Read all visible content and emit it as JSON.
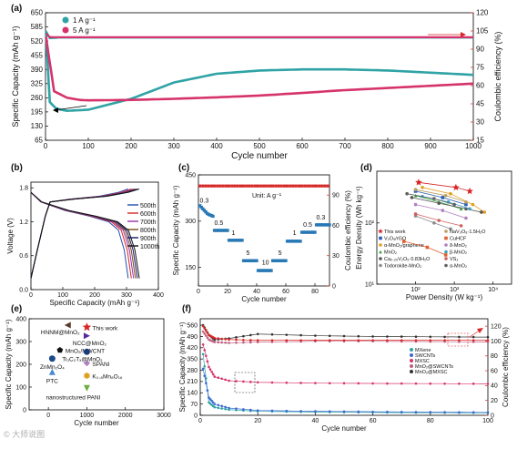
{
  "chart_data": [
    {
      "panel": "a",
      "type": "line",
      "xlabel": "Cycle number",
      "ylabel": "Specific Capacity (mAh g⁻¹)",
      "y2label": "Coulombic efficiency (%)",
      "xlim": [
        0,
        1000
      ],
      "ylim": [
        65,
        650
      ],
      "y2lim": [
        15,
        120
      ],
      "xticks": [
        0,
        100,
        200,
        300,
        400,
        500,
        600,
        700,
        800,
        900,
        1000
      ],
      "yticks": [
        65,
        130,
        195,
        260,
        325,
        390,
        455,
        520,
        585,
        650
      ],
      "y2ticks": [
        15,
        30,
        45,
        60,
        75,
        90,
        105,
        120
      ],
      "legend_position": "top-left",
      "series": [
        {
          "name": "1 A g⁻¹",
          "axis": "left",
          "color": "#2fa3a6",
          "x": [
            1,
            10,
            25,
            50,
            100,
            200,
            300,
            400,
            500,
            600,
            700,
            800,
            900,
            1000
          ],
          "y": [
            560,
            240,
            210,
            200,
            205,
            255,
            330,
            370,
            385,
            390,
            390,
            385,
            375,
            365
          ]
        },
        {
          "name": "5 A g⁻¹",
          "axis": "left",
          "color": "#d6336c",
          "x": [
            1,
            20,
            50,
            80,
            100,
            200,
            300,
            400,
            500,
            600,
            700,
            800,
            900,
            1000
          ],
          "y": [
            540,
            290,
            260,
            250,
            248,
            250,
            255,
            262,
            270,
            282,
            295,
            305,
            315,
            325
          ]
        },
        {
          "name": "CE 1 A g⁻¹",
          "axis": "right",
          "color": "#2fa3a6",
          "x": [
            1,
            10,
            30,
            1000
          ],
          "y": [
            105,
            99,
            99.5,
            99.5
          ]
        },
        {
          "name": "CE 5 A g⁻¹",
          "axis": "right",
          "color": "#d6336c",
          "x": [
            1,
            10,
            30,
            1000
          ],
          "y": [
            103,
            100,
            99.8,
            99.8
          ]
        }
      ]
    },
    {
      "panel": "b",
      "type": "line",
      "xlabel": "Specific Capacity (mAh g⁻¹)",
      "ylabel": "Voltage (V)",
      "xlim": [
        0,
        400
      ],
      "ylim": [
        0,
        1.9
      ],
      "xticks": [
        0,
        100,
        200,
        300,
        400
      ],
      "yticks": [
        0.0,
        0.6,
        1.2,
        1.8
      ],
      "legend_position": "right",
      "series": [
        {
          "name": "500th",
          "color": "#1f4fb4",
          "end_capacity": 305
        },
        {
          "name": "600th",
          "color": "#d62728",
          "end_capacity": 315
        },
        {
          "name": "700th",
          "color": "#9b2fae",
          "end_capacity": 322
        },
        {
          "name": "800th",
          "color": "#7a4a1a",
          "end_capacity": 328
        },
        {
          "name": "900th",
          "color": "#1a1a6a",
          "end_capacity": 334
        },
        {
          "name": "1000th",
          "color": "#111111",
          "end_capacity": 340
        }
      ]
    },
    {
      "panel": "c",
      "type": "scatter",
      "xlabel": "Cycle number",
      "ylabel": "Specific Capacity (mAh g⁻¹)",
      "y2label": "Coulombic efficiency (%)",
      "xlim": [
        0,
        90
      ],
      "ylim": [
        90,
        450
      ],
      "y2lim": [
        0,
        110
      ],
      "xticks": [
        0,
        20,
        40,
        60,
        80
      ],
      "yticks": [
        150,
        300,
        450
      ],
      "y2ticks": [
        0,
        30,
        60,
        90
      ],
      "unit_note": "Unit: A g⁻¹",
      "rate_labels": [
        {
          "text": "0.3",
          "x": 4,
          "y": 360
        },
        {
          "text": "0.5",
          "x": 14,
          "y": 288
        },
        {
          "text": "1",
          "x": 24,
          "y": 255
        },
        {
          "text": "5",
          "x": 34,
          "y": 190
        },
        {
          "text": "10",
          "x": 46,
          "y": 160
        },
        {
          "text": "5",
          "x": 56,
          "y": 190
        },
        {
          "text": "1",
          "x": 66,
          "y": 255
        },
        {
          "text": "0.5",
          "x": 75,
          "y": 282
        },
        {
          "text": "0.3",
          "x": 84,
          "y": 306
        }
      ],
      "steps": [
        {
          "from": 1,
          "to": 10,
          "y": [
            350,
            345,
            340,
            335,
            330,
            325,
            322,
            320,
            318,
            316
          ]
        },
        {
          "from": 11,
          "to": 20,
          "y": 270
        },
        {
          "from": 21,
          "to": 30,
          "y": 238
        },
        {
          "from": 31,
          "to": 40,
          "y": 172
        },
        {
          "from": 41,
          "to": 50,
          "y": 140
        },
        {
          "from": 51,
          "to": 60,
          "y": 172
        },
        {
          "from": 61,
          "to": 70,
          "y": 235
        },
        {
          "from": 71,
          "to": 80,
          "y": 264
        },
        {
          "from": 81,
          "to": 90,
          "y": 288
        }
      ],
      "ce": 99,
      "capacity_color": "#2878b5",
      "ce_color": "#d62728"
    },
    {
      "panel": "d",
      "type": "scatter",
      "scale": "log",
      "xlabel": "Power Density (W kg⁻¹)",
      "ylabel": "Energy Density (Wh kg⁻¹)",
      "xlim": [
        10,
        30000
      ],
      "ylim": [
        10,
        700
      ],
      "xticks": [
        100,
        1000,
        10000
      ],
      "xtick_labels": [
        "10²",
        "10³",
        "10⁴"
      ],
      "yticks": [
        10,
        100
      ],
      "ytick_labels": [
        "10¹",
        "10²"
      ],
      "legend": [
        {
          "name": "This work",
          "color": "#d62728",
          "marker": "star",
          "pts": [
            [
              120,
              460
            ],
            [
              1100,
              380
            ],
            [
              2500,
              330
            ]
          ]
        },
        {
          "name": "V₂O₅/rGO",
          "color": "#2a5db0",
          "marker": "square",
          "pts": [
            [
              100,
              330
            ],
            [
              500,
              260
            ],
            [
              2000,
              200
            ]
          ]
        },
        {
          "name": "α-MnO₂/graphene",
          "color": "#e0a020",
          "marker": "circle",
          "pts": [
            [
              150,
              380
            ],
            [
              800,
              300
            ],
            [
              3000,
              200
            ],
            [
              6000,
              150
            ]
          ]
        },
        {
          "name": "MnO₂",
          "color": "#2ca02c",
          "marker": "triangle",
          "pts": [
            [
              100,
              280
            ],
            [
              400,
              220
            ],
            [
              1500,
              170
            ]
          ]
        },
        {
          "name": "Ca₀.₂₅V₂O₅·0.83H₂O",
          "color": "#555555",
          "marker": "circle",
          "pts": [
            [
              80,
              260
            ],
            [
              400,
              210
            ],
            [
              2000,
              170
            ],
            [
              5000,
              150
            ]
          ]
        },
        {
          "name": "Todorokite-MnO₂",
          "color": "#8c8c8c",
          "marker": "circle",
          "pts": [
            [
              100,
              130
            ],
            [
              300,
              100
            ],
            [
              800,
              80
            ]
          ]
        },
        {
          "name": "NaV₃O₈·1.5H₂O",
          "color": "#bba060",
          "marker": "circle",
          "pts": [
            [
              100,
              350
            ],
            [
              600,
              280
            ],
            [
              2000,
              220
            ]
          ]
        },
        {
          "name": "CuHCF",
          "color": "#e06030",
          "marker": "square",
          "pts": [
            [
              50,
              50
            ],
            [
              200,
              40
            ],
            [
              600,
              30
            ]
          ]
        },
        {
          "name": "δ-MnO₂",
          "color": "#b080c0",
          "marker": "circle",
          "pts": [
            [
              100,
              200
            ],
            [
              500,
              160
            ],
            [
              2000,
              120
            ]
          ]
        },
        {
          "name": "β-MnO₂",
          "color": "#40a0c0",
          "marker": "circle",
          "pts": [
            [
              150,
              270
            ],
            [
              700,
              220
            ],
            [
              2500,
              170
            ]
          ]
        },
        {
          "name": "VS₂",
          "color": "#d06060",
          "marker": "circle",
          "pts": [
            [
              100,
              140
            ],
            [
              400,
              110
            ],
            [
              1500,
              90
            ]
          ]
        },
        {
          "name": "α-MnO₂",
          "color": "#606060",
          "marker": "circle",
          "pts": [
            [
              60,
              300
            ],
            [
              300,
              250
            ],
            [
              1000,
              200
            ]
          ]
        }
      ]
    },
    {
      "panel": "e",
      "type": "scatter",
      "xlabel": "Cycle number",
      "ylabel": "Specific Capacity (mAh g⁻¹)",
      "xlim": [
        -500,
        3000
      ],
      "ylim": [
        0,
        400
      ],
      "xticks": [
        0,
        1000,
        2000,
        3000
      ],
      "yticks": [
        0,
        100,
        200,
        300,
        400
      ],
      "points": [
        {
          "label": "This work",
          "x": 1000,
          "y": 363,
          "color": "#d62728",
          "marker": "star"
        },
        {
          "label": "HNNM@MnO₂",
          "x": 500,
          "y": 372,
          "color": "#5a3a2a",
          "marker": "triangle-left"
        },
        {
          "label": "NCC@MnO₂",
          "x": 1000,
          "y": 325,
          "color": "#5a2a9a",
          "marker": "triangle-right"
        },
        {
          "label": "MnO₂/MWCNT",
          "x": 300,
          "y": 262,
          "color": "#111111",
          "marker": "pentagon"
        },
        {
          "label": "Ti₃C₂Tₓ@MnO₂",
          "x": 1000,
          "y": 255,
          "color": "#1a3a7a",
          "marker": "sphere"
        },
        {
          "label": "ZnMn₂O₄",
          "x": 100,
          "y": 225,
          "color": "#1a4a8a",
          "marker": "circle"
        },
        {
          "label": "SPANI",
          "x": 1000,
          "y": 205,
          "color": "#b080c0",
          "marker": "diamond"
        },
        {
          "label": "PTC",
          "x": 100,
          "y": 167,
          "color": "#4a8ad0",
          "marker": "triangle"
        },
        {
          "label": "K₀.₈Mn₈O₁₆",
          "x": 1000,
          "y": 150,
          "color": "#e0a020",
          "marker": "hexagon"
        },
        {
          "label": "nanostructured PANI",
          "x": 1000,
          "y": 95,
          "color": "#6ab040",
          "marker": "triangle-down"
        }
      ]
    },
    {
      "panel": "f",
      "type": "scatter",
      "xlabel": "Cycle number",
      "ylabel": "Specific Capacity (mAh g⁻¹)",
      "y2label": "Coulombic efficiency (%)",
      "xlim": [
        0,
        100
      ],
      "ylim": [
        0,
        600
      ],
      "y2lim": [
        0,
        130
      ],
      "xticks": [
        0,
        20,
        40,
        60,
        80,
        100
      ],
      "yticks": [
        0,
        70,
        140,
        210,
        280,
        350,
        420,
        490,
        560
      ],
      "y2ticks": [
        0,
        20,
        40,
        60,
        80,
        100,
        120
      ],
      "legend_position": "right",
      "series": [
        {
          "name": "MXene",
          "color": "#2fa3a6",
          "marker": "circle",
          "axis": "left",
          "x": [
            1,
            3,
            5,
            10,
            20,
            40,
            60,
            80,
            100
          ],
          "y": [
            380,
            80,
            50,
            35,
            25,
            20,
            18,
            16,
            15
          ]
        },
        {
          "name": "SWCNTs",
          "color": "#3a6ad0",
          "marker": "circle",
          "axis": "left",
          "x": [
            1,
            3,
            5,
            10,
            20,
            40,
            60,
            80,
            100
          ],
          "y": [
            290,
            110,
            70,
            45,
            30,
            25,
            22,
            20,
            18
          ]
        },
        {
          "name": "MXSC",
          "color": "#d6336c",
          "marker": "circle",
          "axis": "left",
          "x": [
            1,
            3,
            5,
            10,
            20,
            40,
            60,
            80,
            100
          ],
          "y": [
            440,
            300,
            240,
            215,
            205,
            200,
            198,
            197,
            196
          ]
        },
        {
          "name": "MnO₂@SWCNTs",
          "color": "#c06080",
          "marker": "circle",
          "axis": "left",
          "x": [
            1,
            3,
            5,
            10,
            20,
            40,
            60,
            80,
            100
          ],
          "y": [
            520,
            470,
            455,
            450,
            455,
            460,
            460,
            458,
            456
          ]
        },
        {
          "name": "MnO₂@MXSC",
          "color": "#333333",
          "marker": "circle",
          "axis": "left",
          "x": [
            1,
            3,
            5,
            10,
            20,
            40,
            60,
            80,
            100
          ],
          "y": [
            560,
            500,
            470,
            478,
            505,
            495,
            490,
            488,
            486
          ]
        },
        {
          "name": "CE",
          "color": "#d62728",
          "marker": "circle",
          "axis": "right",
          "x": [
            1,
            3,
            5,
            10,
            20,
            40,
            60,
            80,
            100
          ],
          "y": [
            120,
            108,
            104,
            102,
            101,
            101,
            101,
            101,
            101
          ]
        }
      ]
    }
  ],
  "panel_labels": [
    "(a)",
    "(b)",
    "(c)",
    "(d)",
    "(e)",
    "(f)"
  ],
  "watermark": "© 大师说图"
}
